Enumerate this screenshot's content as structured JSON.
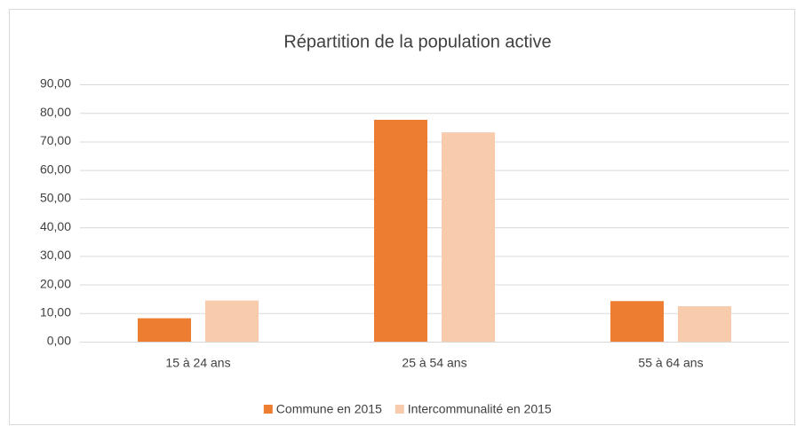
{
  "chart_data": {
    "type": "bar",
    "title": "Répartition de la population active",
    "categories": [
      "15 à 24 ans",
      "25 à 54 ans",
      "55 à 64 ans"
    ],
    "series": [
      {
        "name": "Commune en 2015",
        "color": "#ed7d31",
        "values": [
          8.2,
          77.6,
          14.2
        ]
      },
      {
        "name": "Intercommunalité en 2015",
        "color": "#f8cbad",
        "values": [
          14.4,
          73.2,
          12.4
        ]
      }
    ],
    "ylim": [
      0,
      90
    ],
    "yticks": [
      {
        "value": 0,
        "label": "0,00"
      },
      {
        "value": 10,
        "label": "10,00"
      },
      {
        "value": 20,
        "label": "20,00"
      },
      {
        "value": 30,
        "label": "30,00"
      },
      {
        "value": 40,
        "label": "40,00"
      },
      {
        "value": 50,
        "label": "50,00"
      },
      {
        "value": 60,
        "label": "60,00"
      },
      {
        "value": 70,
        "label": "70,00"
      },
      {
        "value": 80,
        "label": "80,00"
      },
      {
        "value": 90,
        "label": "90,00"
      }
    ],
    "grid": true,
    "legend": "bottom"
  }
}
